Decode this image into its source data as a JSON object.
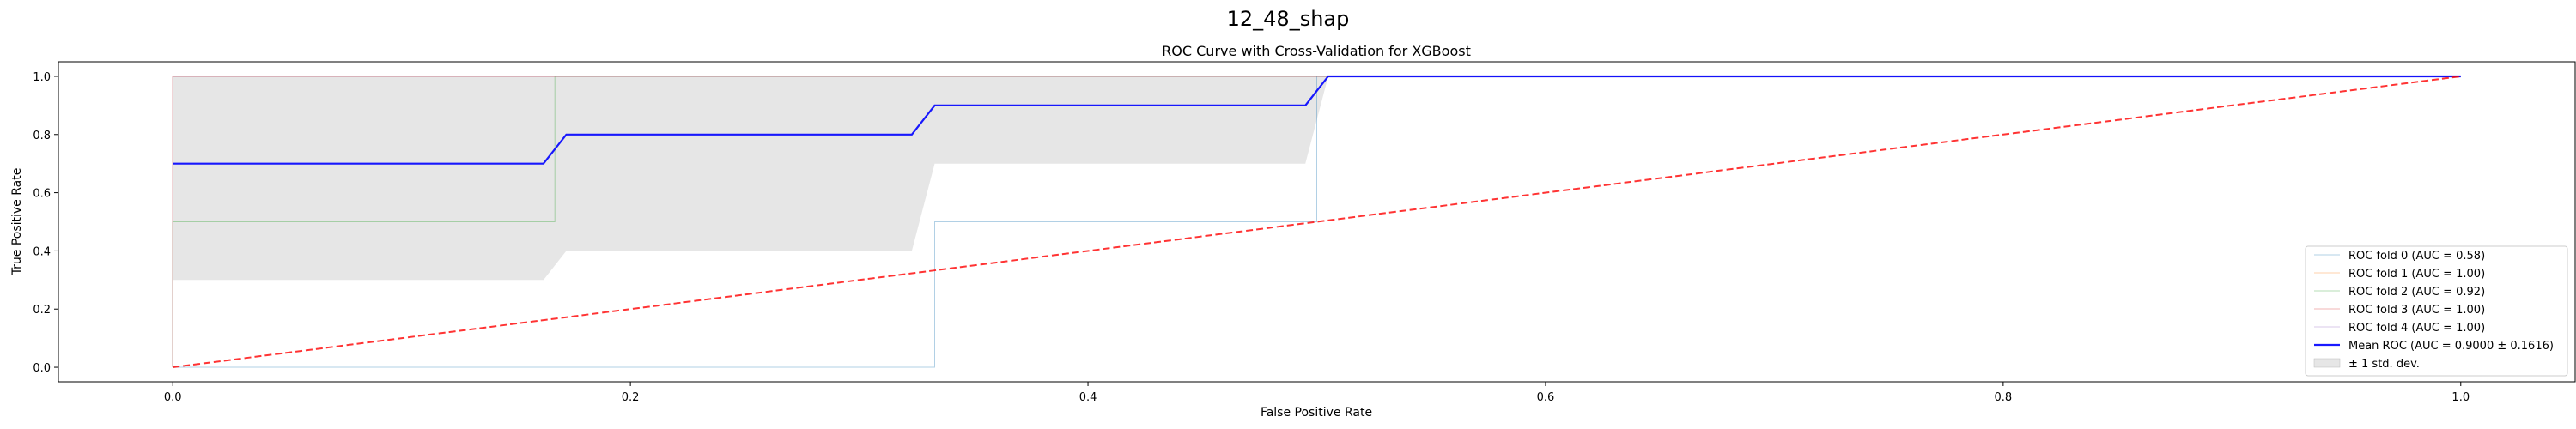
{
  "figure_title": "12_48_shap",
  "chart_data": {
    "type": "line",
    "title": "ROC Curve with Cross-Validation for XGBoost",
    "xlabel": "False Positive Rate",
    "ylabel": "True Positive Rate",
    "xlim": [
      -0.05,
      1.05
    ],
    "ylim": [
      -0.05,
      1.05
    ],
    "x_ticks": [
      0.0,
      0.2,
      0.4,
      0.6,
      0.8,
      1.0
    ],
    "y_ticks": [
      0.0,
      0.2,
      0.4,
      0.6,
      0.8,
      1.0
    ],
    "x_tick_labels": [
      "0.0",
      "0.2",
      "0.4",
      "0.6",
      "0.8",
      "1.0"
    ],
    "y_tick_labels": [
      "0.0",
      "0.2",
      "0.4",
      "0.6",
      "0.8",
      "1.0"
    ],
    "grid": false,
    "legend_position": "lower-right",
    "series": [
      {
        "name": "ROC fold 0 (AUC = 0.58)",
        "color": "#1f77b4",
        "x": [
          0.0,
          0.0,
          0.333,
          0.333,
          0.5,
          0.5,
          1.0
        ],
        "y": [
          0.0,
          0.0,
          0.0,
          0.5,
          0.5,
          1.0,
          1.0
        ]
      },
      {
        "name": "ROC fold 1 (AUC = 1.00)",
        "color": "#ff7f0e",
        "x": [
          0.0,
          0.0,
          0.0,
          1.0
        ],
        "y": [
          0.0,
          0.5,
          1.0,
          1.0
        ]
      },
      {
        "name": "ROC fold 2 (AUC = 0.92)",
        "color": "#2ca02c",
        "x": [
          0.0,
          0.0,
          0.167,
          0.167,
          0.333,
          0.333,
          1.0
        ],
        "y": [
          0.0,
          0.5,
          0.5,
          1.0,
          1.0,
          1.0,
          1.0
        ]
      },
      {
        "name": "ROC fold 3 (AUC = 1.00)",
        "color": "#d62728",
        "x": [
          0.0,
          0.0,
          0.0,
          1.0
        ],
        "y": [
          0.0,
          0.5,
          1.0,
          1.0
        ]
      },
      {
        "name": "ROC fold 4 (AUC = 1.00)",
        "color": "#9467bd",
        "x": [
          0.0,
          0.0,
          0.0,
          1.0
        ],
        "y": [
          0.0,
          0.5,
          1.0,
          1.0
        ]
      },
      {
        "name": "Mean ROC (AUC = 0.9000 ± 0.1616)",
        "color": "#0000ff",
        "x": [
          0.0,
          0.162,
          0.172,
          0.323,
          0.333,
          0.495,
          0.505,
          1.0
        ],
        "y": [
          0.7,
          0.7,
          0.8,
          0.8,
          0.9,
          0.9,
          1.0,
          1.0
        ]
      }
    ],
    "std_band": {
      "name": "± 1 std. dev.",
      "color": "#808080",
      "x": [
        0.0,
        0.162,
        0.172,
        0.323,
        0.333,
        0.495,
        0.505,
        1.0
      ],
      "upper": [
        1.0,
        1.0,
        1.0,
        1.0,
        1.0,
        1.0,
        1.0,
        1.0
      ],
      "lower": [
        0.3,
        0.3,
        0.4,
        0.4,
        0.7,
        0.7,
        1.0,
        1.0
      ]
    },
    "chance_line": {
      "x": [
        0.0,
        1.0
      ],
      "y": [
        0.0,
        1.0
      ],
      "color": "#ff0000",
      "dashed": true
    }
  }
}
